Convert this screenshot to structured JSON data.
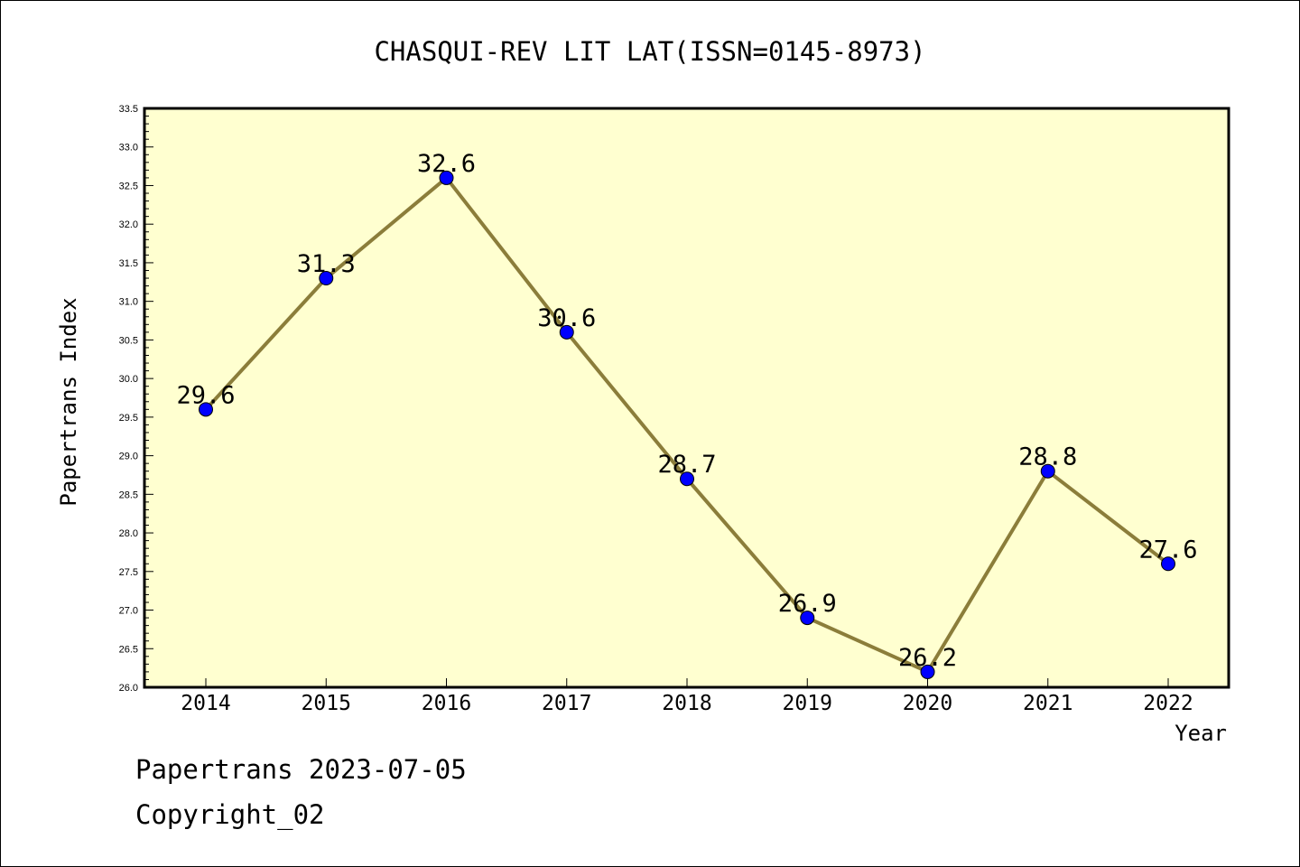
{
  "chart_data": {
    "type": "line",
    "title": "CHASQUI-REV LIT LAT(ISSN=0145-8973)",
    "xlabel": "Year",
    "ylabel": "Papertrans Index",
    "categories": [
      "2014",
      "2015",
      "2016",
      "2017",
      "2018",
      "2019",
      "2020",
      "2021",
      "2022"
    ],
    "values": [
      29.6,
      31.3,
      32.6,
      30.6,
      28.7,
      26.9,
      26.2,
      28.8,
      27.6
    ],
    "data_labels": [
      "29.6",
      "31.3",
      "32.6",
      "30.6",
      "28.7",
      "26.9",
      "26.2",
      "28.8",
      "27.6"
    ],
    "ylim": [
      26.0,
      33.5
    ],
    "yticks": [
      "26.0",
      "26.5",
      "27.0",
      "27.5",
      "28.0",
      "28.5",
      "29.0",
      "29.5",
      "30.0",
      "30.5",
      "31.0",
      "31.5",
      "32.0",
      "32.5",
      "33.0",
      "33.5"
    ],
    "grid": false,
    "colors": {
      "plot_background": "#ffffd0",
      "line": "#8b7d3a",
      "marker": "#0000ff"
    }
  },
  "footer": {
    "line1": "Papertrans 2023-07-05",
    "line2": "Copyright_02"
  }
}
